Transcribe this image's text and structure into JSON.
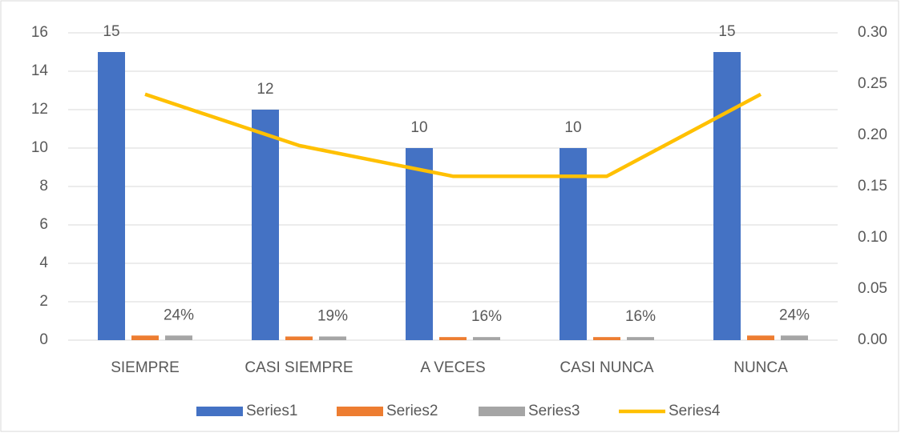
{
  "chart_data": {
    "type": "bar",
    "categories": [
      "SIEMPRE",
      "CASI SIEMPRE",
      "A VECES",
      "CASI NUNCA",
      "NUNCA"
    ],
    "series": [
      {
        "name": "Series1",
        "color": "#4472c4",
        "type": "bar",
        "values": [
          15,
          12,
          10,
          10,
          15
        ],
        "show_labels": true
      },
      {
        "name": "Series2",
        "color": "#ed7d31",
        "type": "bar",
        "values": [
          0.24,
          0.19,
          0.16,
          0.16,
          0.24
        ]
      },
      {
        "name": "Series3",
        "color": "#a5a5a5",
        "type": "bar",
        "values": [
          0.24,
          0.19,
          0.16,
          0.16,
          0.24
        ],
        "value_labels": [
          "24%",
          "19%",
          "16%",
          "16%",
          "24%"
        ]
      },
      {
        "name": "Series4",
        "color": "#ffc000",
        "type": "line",
        "axis": "y2",
        "values": [
          0.24,
          0.19,
          0.16,
          0.16,
          0.24
        ]
      }
    ],
    "ylim": [
      0,
      16
    ],
    "yticks": [
      0,
      2,
      4,
      6,
      8,
      10,
      12,
      14,
      16
    ],
    "y2lim": [
      0,
      0.3
    ],
    "y2ticks": [
      {
        "value": 0,
        "label": "0.00"
      },
      {
        "value": 0.05,
        "label": "0.05"
      },
      {
        "value": 0.1,
        "label": "0.10"
      },
      {
        "value": 0.15,
        "label": "0.15"
      },
      {
        "value": 0.2,
        "label": "0.20"
      },
      {
        "value": 0.25,
        "label": "0.25"
      },
      {
        "value": 0.3,
        "label": "0.30"
      }
    ],
    "grid": true,
    "legend": "bottom"
  }
}
